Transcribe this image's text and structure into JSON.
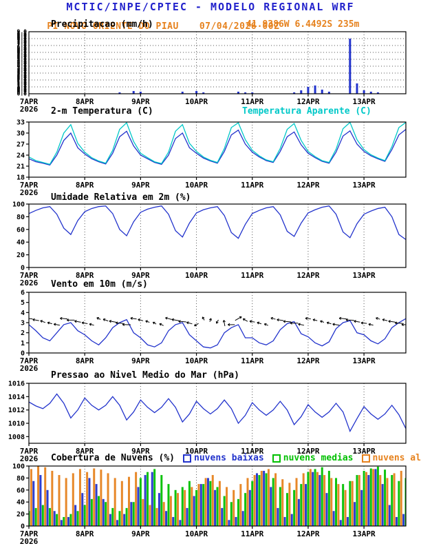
{
  "header": {
    "title": "MCTIC/INPE/CPTEC - MODELO REGIONAL WRF",
    "station": "PI NOVO ORIENTE DO PIAU",
    "run": "07/04/2026 00Z",
    "colors": {
      "title": "#2222cc",
      "subtitle": "#e6821e"
    }
  },
  "x_axis": {
    "tick_labels": [
      "7APR",
      "8APR",
      "9APR",
      "10APR",
      "11APR",
      "12APR",
      "13APR"
    ],
    "year_label": "2026",
    "tick_hours": [
      0,
      24,
      48,
      72,
      96,
      120,
      144
    ],
    "total_hours": 162,
    "time_step_hours": 3
  },
  "chart_data": [
    {
      "name": "precipitation",
      "type": "bar",
      "title": "Precipitacao (mm/h)",
      "annotation": {
        "text": "41.9386W 6.4492S 235m",
        "color": "#e6821e"
      },
      "ylim": [
        0,
        9
      ],
      "yticks": [],
      "y_labels_illegible": true,
      "hgrid": [
        1,
        2,
        3,
        4,
        5,
        6,
        7,
        8
      ],
      "bar_color": "#2233cc",
      "values": [
        0,
        0,
        0,
        0,
        0,
        0,
        0,
        0,
        0,
        0,
        0,
        0,
        0,
        0.2,
        0,
        0.4,
        0.3,
        0,
        0,
        0,
        0,
        0,
        0.3,
        0,
        0.4,
        0.2,
        0,
        0,
        0,
        0,
        0.3,
        0.2,
        0.2,
        0,
        0,
        0,
        0,
        0,
        0.2,
        0.5,
        1.0,
        1.2,
        0.6,
        0.3,
        0,
        0,
        8.0,
        1.5,
        0.5,
        0.3,
        0.2,
        0,
        0,
        0,
        0
      ]
    },
    {
      "name": "temperature-2m",
      "type": "line",
      "title": "2-m Temperatura (C)",
      "ylim": [
        18,
        33
      ],
      "yticks": [
        18,
        21,
        24,
        27,
        30,
        33
      ],
      "series": [
        {
          "name": "2-m Temperatura (C)",
          "color": "#2233cc",
          "values": [
            23.0,
            22.2,
            21.8,
            21.3,
            24.0,
            28.0,
            30.0,
            26.0,
            24.3,
            23.0,
            22.2,
            21.6,
            24.5,
            29.0,
            30.5,
            26.5,
            24.0,
            23.0,
            22.0,
            21.5,
            24.0,
            28.5,
            30.0,
            26.0,
            24.5,
            23.2,
            22.4,
            21.8,
            25.0,
            29.5,
            30.8,
            27.0,
            24.8,
            23.5,
            22.5,
            22.0,
            25.0,
            29.0,
            30.3,
            26.8,
            24.5,
            23.3,
            22.3,
            21.8,
            24.8,
            29.2,
            30.6,
            27.0,
            25.0,
            23.8,
            23.0,
            22.3,
            25.5,
            29.5,
            31.0
          ]
        },
        {
          "name": "Temperatura Aparente (C)",
          "color": "#00c8c8",
          "values": [
            23.5,
            22.5,
            22.0,
            21.5,
            24.8,
            30.0,
            32.3,
            27.2,
            24.8,
            23.3,
            22.4,
            21.8,
            25.3,
            31.0,
            32.8,
            27.7,
            24.5,
            23.3,
            22.2,
            21.7,
            24.8,
            30.5,
            32.3,
            27.2,
            25.0,
            23.5,
            22.6,
            22.0,
            25.8,
            31.5,
            32.8,
            28.2,
            25.3,
            23.8,
            22.7,
            22.2,
            25.8,
            31.0,
            32.6,
            28.0,
            25.0,
            23.6,
            22.5,
            22.0,
            25.6,
            31.2,
            32.9,
            28.2,
            25.5,
            24.1,
            23.2,
            22.5,
            26.3,
            31.5,
            32.9
          ]
        }
      ]
    },
    {
      "name": "relative-humidity-2m",
      "type": "line",
      "title": "Umidade Relativa em 2m (%)",
      "ylim": [
        0,
        100
      ],
      "yticks": [
        0,
        20,
        40,
        60,
        80,
        100
      ],
      "series": [
        {
          "name": "Umidade Relativa em 2m (%)",
          "color": "#2233cc",
          "values": [
            85,
            90,
            94,
            96,
            84,
            62,
            52,
            74,
            88,
            93,
            96,
            97,
            85,
            60,
            50,
            72,
            87,
            92,
            95,
            97,
            84,
            58,
            48,
            70,
            86,
            91,
            94,
            96,
            82,
            55,
            46,
            68,
            85,
            90,
            94,
            96,
            83,
            57,
            49,
            70,
            86,
            91,
            95,
            97,
            84,
            56,
            47,
            69,
            84,
            89,
            93,
            95,
            80,
            52,
            44
          ]
        }
      ]
    },
    {
      "name": "wind-10m",
      "type": "line",
      "title": "Vento em 10m (m/s)",
      "ylim": [
        0,
        6
      ],
      "yticks": [
        0,
        1,
        2,
        3,
        4,
        5,
        6
      ],
      "series": [
        {
          "name": "Vento em 10m (m/s)",
          "color": "#2233cc",
          "values": [
            2.8,
            2.2,
            1.5,
            1.2,
            2.0,
            2.8,
            3.0,
            2.2,
            1.8,
            1.2,
            0.8,
            1.5,
            2.5,
            3.0,
            3.3,
            2.0,
            1.5,
            0.8,
            0.6,
            1.0,
            2.2,
            2.8,
            3.0,
            1.8,
            1.2,
            0.6,
            0.5,
            0.8,
            2.0,
            2.5,
            2.8,
            1.5,
            1.5,
            1.0,
            0.8,
            1.2,
            2.3,
            2.9,
            3.1,
            1.9,
            1.6,
            1.0,
            0.7,
            1.1,
            2.4,
            3.0,
            3.2,
            2.0,
            1.8,
            1.2,
            0.9,
            1.4,
            2.5,
            3.0,
            3.4
          ]
        }
      ],
      "barbs": {
        "y_level": 3.1,
        "color": "#000000",
        "dir_from_deg": [
          95,
          100,
          110,
          105,
          100,
          95,
          90,
          100,
          100,
          105,
          115,
          110,
          100,
          95,
          92,
          98,
          105,
          110,
          120,
          115,
          105,
          100,
          95,
          105,
          60,
          150,
          200,
          30,
          170,
          90,
          240,
          120,
          100,
          108,
          112,
          106,
          98,
          94,
          90,
          102,
          98,
          104,
          110,
          108,
          100,
          96,
          93,
          100,
          96,
          102,
          108,
          104,
          98,
          94,
          90
        ]
      }
    },
    {
      "name": "mean-sea-level-pressure",
      "type": "line",
      "title": "Pressao ao Nivel Medio do Mar (hPa)",
      "ylim": [
        1007,
        1016
      ],
      "yticks": [
        1008,
        1010,
        1012,
        1014,
        1016
      ],
      "series": [
        {
          "name": "Pressao ao Nivel Medio do Mar (hPa)",
          "color": "#2233cc",
          "values": [
            1013.2,
            1012.6,
            1012.2,
            1013.0,
            1014.4,
            1013.0,
            1010.8,
            1012.0,
            1013.8,
            1012.7,
            1012.0,
            1012.7,
            1014.0,
            1012.7,
            1010.5,
            1011.7,
            1013.5,
            1012.4,
            1011.6,
            1012.4,
            1013.7,
            1012.4,
            1010.2,
            1011.4,
            1013.3,
            1012.2,
            1011.4,
            1012.2,
            1013.5,
            1012.2,
            1010.0,
            1011.2,
            1013.1,
            1012.0,
            1011.2,
            1012.0,
            1013.3,
            1012.0,
            1009.8,
            1011.0,
            1012.8,
            1011.7,
            1010.9,
            1011.7,
            1013.0,
            1011.7,
            1008.8,
            1010.7,
            1012.5,
            1011.4,
            1010.6,
            1011.4,
            1012.7,
            1011.3,
            1009.2
          ]
        }
      ]
    },
    {
      "name": "cloud-cover",
      "type": "grouped-bar",
      "title": "Cobertura de Nuvens (%)",
      "ylim": [
        0,
        100
      ],
      "yticks": [
        0,
        20,
        40,
        60,
        80,
        100
      ],
      "series": [
        {
          "name": "nuvens baixas",
          "color": "#2233cc",
          "values": [
            40,
            75,
            85,
            60,
            25,
            10,
            15,
            35,
            55,
            80,
            70,
            45,
            20,
            10,
            20,
            40,
            65,
            85,
            90,
            55,
            25,
            15,
            10,
            30,
            50,
            70,
            80,
            60,
            30,
            10,
            15,
            25,
            60,
            88,
            92,
            65,
            30,
            15,
            20,
            45,
            70,
            90,
            85,
            55,
            25,
            10,
            15,
            40,
            60,
            85,
            95,
            70,
            35,
            15,
            20
          ]
        },
        {
          "name": "nuvens medias",
          "color": "#00c000",
          "values": [
            25,
            30,
            35,
            30,
            20,
            15,
            20,
            25,
            35,
            45,
            50,
            40,
            30,
            25,
            30,
            40,
            80,
            90,
            95,
            85,
            70,
            60,
            65,
            75,
            60,
            70,
            75,
            65,
            50,
            40,
            45,
            55,
            75,
            85,
            88,
            80,
            65,
            55,
            60,
            70,
            90,
            95,
            98,
            92,
            80,
            70,
            75,
            85,
            92,
            96,
            99,
            94,
            85,
            75,
            80
          ]
        },
        {
          "name": "nuvens altas",
          "color": "#e6821e",
          "values": [
            95,
            100,
            98,
            92,
            85,
            80,
            88,
            95,
            90,
            96,
            94,
            88,
            80,
            75,
            82,
            90,
            45,
            35,
            30,
            40,
            50,
            55,
            60,
            65,
            70,
            80,
            85,
            75,
            65,
            60,
            70,
            80,
            85,
            92,
            95,
            88,
            78,
            72,
            80,
            88,
            95,
            90,
            85,
            80,
            70,
            60,
            75,
            85,
            90,
            95,
            85,
            80,
            88,
            92,
            95
          ]
        }
      ]
    }
  ]
}
